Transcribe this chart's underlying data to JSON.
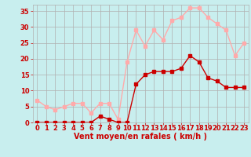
{
  "title": "",
  "xlabel": "Vent moyen/en rafales ( km/h )",
  "bg_color": "#c8eeee",
  "grid_color": "#b0b0b0",
  "hours": [
    0,
    1,
    2,
    3,
    4,
    5,
    6,
    7,
    8,
    9,
    10,
    11,
    12,
    13,
    14,
    15,
    16,
    17,
    18,
    19,
    20,
    21,
    22,
    23
  ],
  "mean_wind": [
    0,
    0,
    0,
    0,
    0,
    0,
    0,
    2,
    1,
    0,
    0,
    12,
    15,
    16,
    16,
    16,
    17,
    21,
    19,
    14,
    13,
    11,
    11,
    11
  ],
  "gust_wind": [
    7,
    5,
    4,
    5,
    6,
    6,
    3,
    6,
    6,
    1,
    19,
    29,
    24,
    29,
    26,
    32,
    33,
    36,
    36,
    33,
    31,
    29,
    21,
    25
  ],
  "mean_color": "#cc0000",
  "gust_color": "#ffaaaa",
  "markersize": 2.5,
  "linewidth": 1.0,
  "xlabel_fontsize": 7,
  "tick_fontsize": 6,
  "tick_color": "#cc0000",
  "label_color": "#cc0000",
  "yticks": [
    0,
    5,
    10,
    15,
    20,
    25,
    30,
    35
  ],
  "ylim_max": 37
}
